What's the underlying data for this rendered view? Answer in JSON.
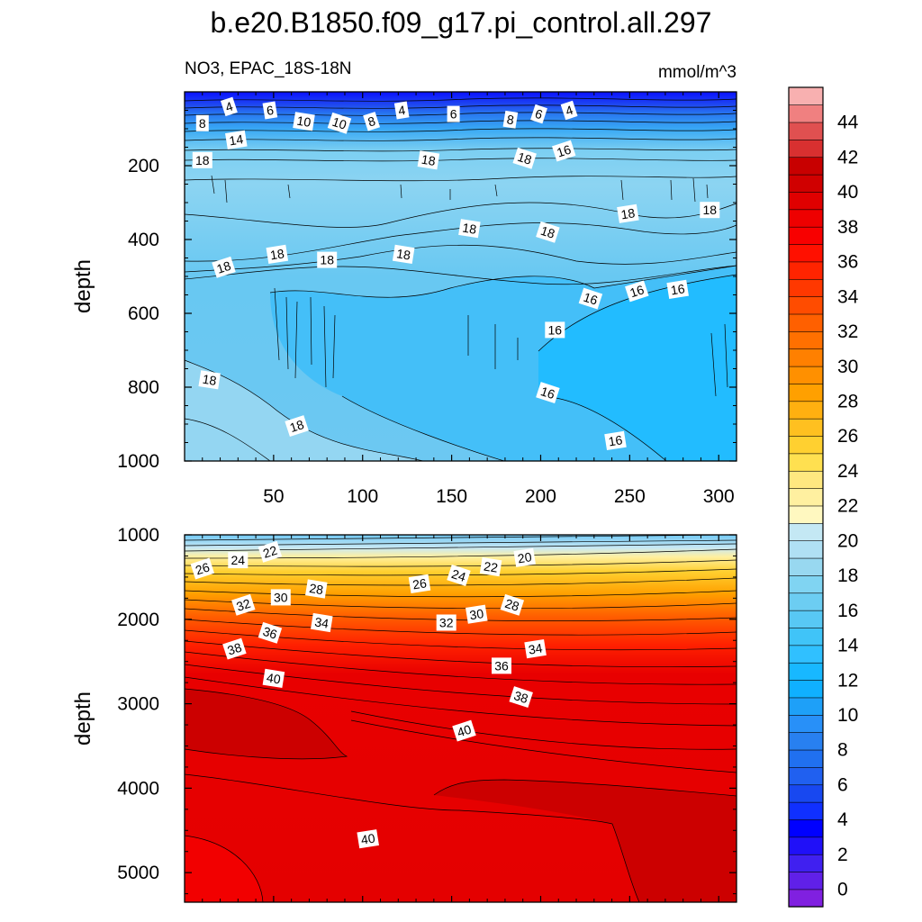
{
  "chart_data": {
    "type": "contour",
    "title": "b.e20.B1850.f09_g17.pi_control.all.297",
    "subtitle_left": "NO3, EPAC_18S-18N",
    "units": "mmol/m^3",
    "ylabel": "depth",
    "colorbar": {
      "min": -1,
      "max": 46,
      "step": 1,
      "labels": [
        0,
        2,
        4,
        6,
        8,
        10,
        12,
        14,
        16,
        18,
        20,
        22,
        24,
        26,
        28,
        30,
        32,
        34,
        36,
        38,
        40,
        42,
        44
      ],
      "colors": [
        "#8020e0",
        "#6020e8",
        "#4020f0",
        "#2010f8",
        "#0000ff",
        "#1030ff",
        "#1848f0",
        "#2060f0",
        "#2070f0",
        "#2880f0",
        "#2890f8",
        "#1ea0f8",
        "#10b0ff",
        "#18b8ff",
        "#30c0ff",
        "#40c4f8",
        "#58c8f4",
        "#6ccdf2",
        "#80d4f2",
        "#98d8f0",
        "#b0e0f4",
        "#c4e8f4",
        "#fff8c0",
        "#fff0a0",
        "#ffe880",
        "#ffe050",
        "#ffd030",
        "#ffc020",
        "#ffb010",
        "#ffa000",
        "#ff9000",
        "#ff8000",
        "#ff7000",
        "#ff6000",
        "#ff4c00",
        "#ff3800",
        "#ff2400",
        "#ff1000",
        "#f80000",
        "#ee0000",
        "#e00000",
        "#d00000",
        "#c80000",
        "#d83030",
        "#e05050",
        "#f08080",
        "#f8b0b0"
      ]
    },
    "panels": [
      {
        "name": "upper",
        "xlim": [
          0,
          310
        ],
        "ylim": [
          0,
          1000
        ],
        "xticks": [
          50,
          100,
          150,
          200,
          250,
          300
        ],
        "yticks": [
          200,
          400,
          600,
          800,
          1000
        ],
        "contour_labels": [
          {
            "v": "4",
            "x": 25,
            "y": 40
          },
          {
            "v": "6",
            "x": 48,
            "y": 50
          },
          {
            "v": "8",
            "x": 10,
            "y": 85
          },
          {
            "v": "10",
            "x": 67,
            "y": 80
          },
          {
            "v": "10",
            "x": 87,
            "y": 85
          },
          {
            "v": "8",
            "x": 105,
            "y": 80
          },
          {
            "v": "4",
            "x": 122,
            "y": 50
          },
          {
            "v": "6",
            "x": 151,
            "y": 60
          },
          {
            "v": "8",
            "x": 183,
            "y": 75
          },
          {
            "v": "6",
            "x": 199,
            "y": 60
          },
          {
            "v": "4",
            "x": 216,
            "y": 50
          },
          {
            "v": "14",
            "x": 29,
            "y": 130
          },
          {
            "v": "18",
            "x": 10,
            "y": 185
          },
          {
            "v": "18",
            "x": 137,
            "y": 185
          },
          {
            "v": "18",
            "x": 191,
            "y": 180
          },
          {
            "v": "16",
            "x": 213,
            "y": 160
          },
          {
            "v": "18",
            "x": 249,
            "y": 330
          },
          {
            "v": "18",
            "x": 295,
            "y": 320
          },
          {
            "v": "18",
            "x": 160,
            "y": 370
          },
          {
            "v": "18",
            "x": 204,
            "y": 380
          },
          {
            "v": "18",
            "x": 22,
            "y": 475
          },
          {
            "v": "18",
            "x": 52,
            "y": 440
          },
          {
            "v": "18",
            "x": 80,
            "y": 455
          },
          {
            "v": "18",
            "x": 123,
            "y": 440
          },
          {
            "v": "16",
            "x": 228,
            "y": 560
          },
          {
            "v": "16",
            "x": 254,
            "y": 540
          },
          {
            "v": "16",
            "x": 277,
            "y": 535
          },
          {
            "v": "16",
            "x": 208,
            "y": 645
          },
          {
            "v": "18",
            "x": 14,
            "y": 780
          },
          {
            "v": "16",
            "x": 204,
            "y": 815
          },
          {
            "v": "18",
            "x": 63,
            "y": 905
          },
          {
            "v": "16",
            "x": 242,
            "y": 945
          }
        ]
      },
      {
        "name": "lower",
        "xlim": [
          0,
          310
        ],
        "ylim": [
          1000,
          5350
        ],
        "xticks": [
          50,
          100,
          150,
          200,
          250,
          300
        ],
        "yticks": [
          1000,
          2000,
          3000,
          4000,
          5000
        ],
        "contour_labels": [
          {
            "v": "22",
            "x": 48,
            "y": 1200
          },
          {
            "v": "20",
            "x": 191,
            "y": 1270
          },
          {
            "v": "24",
            "x": 30,
            "y": 1300
          },
          {
            "v": "22",
            "x": 172,
            "y": 1380
          },
          {
            "v": "24",
            "x": 154,
            "y": 1480
          },
          {
            "v": "26",
            "x": 10,
            "y": 1400
          },
          {
            "v": "26",
            "x": 132,
            "y": 1580
          },
          {
            "v": "30",
            "x": 54,
            "y": 1740
          },
          {
            "v": "28",
            "x": 74,
            "y": 1640
          },
          {
            "v": "28",
            "x": 184,
            "y": 1830
          },
          {
            "v": "32",
            "x": 33,
            "y": 1830
          },
          {
            "v": "30",
            "x": 164,
            "y": 1940
          },
          {
            "v": "32",
            "x": 147,
            "y": 2040
          },
          {
            "v": "34",
            "x": 77,
            "y": 2040
          },
          {
            "v": "36",
            "x": 48,
            "y": 2160
          },
          {
            "v": "38",
            "x": 28,
            "y": 2350
          },
          {
            "v": "34",
            "x": 197,
            "y": 2350
          },
          {
            "v": "36",
            "x": 178,
            "y": 2550
          },
          {
            "v": "40",
            "x": 50,
            "y": 2700
          },
          {
            "v": "38",
            "x": 189,
            "y": 2920
          },
          {
            "v": "40",
            "x": 157,
            "y": 3320
          },
          {
            "v": "40",
            "x": 103,
            "y": 4600
          }
        ]
      }
    ]
  }
}
